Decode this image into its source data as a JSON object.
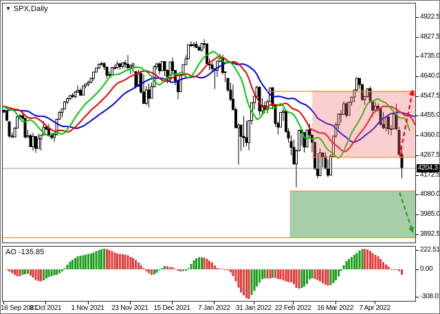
{
  "window": {
    "symbol_label": "SPX,Daily",
    "dropdown_icon": "▼"
  },
  "colors": {
    "up_body": "#ffffff",
    "down_body": "#000000",
    "wick": "#000000",
    "jaw": "#0000e0",
    "teeth": "#ea0000",
    "lips": "#00c800",
    "level_orange": "#f08a3c",
    "resistance_fill": "rgba(242,110,110,0.33)",
    "support_fill": "rgba(96,165,96,0.55)",
    "ao_up": "#1f9e1f",
    "ao_down": "#e13b3b",
    "price_line": "#9c9c9c",
    "badge_bg": "#000000",
    "badge_text": "#ffffff",
    "arrow_up": "#ff0000",
    "arrow_down": "#22a022"
  },
  "chart_data": {
    "type": "candlestick+oscillator",
    "title": "SPX,Daily",
    "timeframe": "Daily",
    "first_visible_index": 32,
    "price_axis": {
      "range": [
        3853,
        4987
      ],
      "ticks": [
        4922.5,
        4827.5,
        4735.0,
        4640.0,
        4547.5,
        4455.0,
        4360.0,
        4267.5,
        4172.5,
        4080.0,
        3985.0,
        3892.5
      ]
    },
    "current_price": 4204.3,
    "current_price_label": "4204.3",
    "time_axis": {
      "ticks": [
        {
          "label": "16 Sep 2021",
          "idx": 0
        },
        {
          "label": "8 Oct 2021",
          "idx": 16
        },
        {
          "label": "1 Nov 2021",
          "idx": 32
        },
        {
          "label": "23 Nov 2021",
          "idx": 48
        },
        {
          "label": "15 Dec 2021",
          "idx": 64
        },
        {
          "label": "7 Jan 2022",
          "idx": 80
        },
        {
          "label": "31 Jan 2022",
          "idx": 95
        },
        {
          "label": "22 Feb 2022",
          "idx": 110
        },
        {
          "label": "16 Mar 2022",
          "idx": 126
        },
        {
          "label": "7 Apr 2022",
          "idx": 141
        }
      ]
    },
    "alligator": {
      "lines": [
        {
          "name": "alligator-jaw-line",
          "period": 13,
          "shift": 8,
          "color_key": "jaw"
        },
        {
          "name": "alligator-teeth-line",
          "period": 8,
          "shift": 5,
          "color_key": "teeth"
        },
        {
          "name": "alligator-lips-line",
          "period": 5,
          "shift": 3,
          "color_key": "lips"
        }
      ]
    },
    "zones": [
      {
        "name": "resistance-zone",
        "price_top": 4570,
        "price_bottom": 4257,
        "start_idx": 117,
        "fill_key": "resistance_fill"
      },
      {
        "name": "support-zone",
        "price_top": 4097,
        "price_bottom": 3876,
        "start_idx": 108.5,
        "fill_key": "support_fill"
      }
    ],
    "levels": [
      {
        "name": "resistance-level-line",
        "price": 4570,
        "start_idx": 99.5
      },
      {
        "name": "support-level-line",
        "price": 3876,
        "start_idx": -0.6
      }
    ],
    "arrows": [
      {
        "name": "bullish-projection-arrow",
        "color_key": "arrow_up",
        "from": {
          "idx": 150.2,
          "price": 4262
        },
        "to": {
          "idx": 155.3,
          "price": 4580
        }
      },
      {
        "name": "bearish-projection-arrow",
        "color_key": "arrow_down",
        "from": {
          "idx": 150.2,
          "price": 4090
        },
        "to": {
          "idx": 155.3,
          "price": 3897
        }
      }
    ],
    "ao": {
      "label": "AO -135.85",
      "fast_period": 5,
      "slow_period": 34,
      "axis_ticks": [
        {
          "label": "222.51",
          "pin": "top"
        },
        {
          "label": "0.00",
          "pin": "zero"
        },
        {
          "label": "-308.01",
          "pin": "bottom"
        }
      ]
    },
    "candles": [
      [
        4395,
        4402,
        4368,
        4387
      ],
      [
        4387,
        4425,
        4384,
        4423
      ],
      [
        4423,
        4429,
        4396,
        4403
      ],
      [
        4403,
        4435,
        4401,
        4429
      ],
      [
        4429,
        4441,
        4425,
        4437
      ],
      [
        4437,
        4442,
        4421,
        4432
      ],
      [
        4432,
        4445,
        4425,
        4436
      ],
      [
        4436,
        4453,
        4430,
        4448
      ],
      [
        4448,
        4465,
        4444,
        4461
      ],
      [
        4461,
        4473,
        4454,
        4468
      ],
      [
        4468,
        4486,
        4463,
        4480
      ],
      [
        4480,
        4482,
        4438,
        4448
      ],
      [
        4448,
        4454,
        4388,
        4400
      ],
      [
        4400,
        4418,
        4392,
        4405
      ],
      [
        4405,
        4448,
        4404,
        4442
      ],
      [
        4442,
        4485,
        4441,
        4480
      ],
      [
        4480,
        4492,
        4468,
        4486
      ],
      [
        4486,
        4501,
        4477,
        4496
      ],
      [
        4496,
        4498,
        4458,
        4470
      ],
      [
        4470,
        4514,
        4468,
        4509
      ],
      [
        4509,
        4537,
        4507,
        4529
      ],
      [
        4529,
        4540,
        4513,
        4523
      ],
      [
        4523,
        4535,
        4510,
        4524
      ],
      [
        4524,
        4546,
        4518,
        4537
      ],
      [
        4537,
        4550,
        4526,
        4535
      ],
      [
        4535,
        4540,
        4506,
        4520
      ],
      [
        4520,
        4532,
        4501,
        4514
      ],
      [
        4514,
        4522,
        4484,
        4493
      ],
      [
        4493,
        4499,
        4448,
        4459
      ],
      [
        4459,
        4485,
        4452,
        4469
      ],
      [
        4469,
        4476,
        4436,
        4443
      ],
      [
        4443,
        4490,
        4439,
        4481
      ],
      [
        4480,
        4485,
        4468,
        4474
      ],
      [
        4474,
        4476,
        4428,
        4433
      ],
      [
        4425,
        4430,
        4350,
        4358
      ],
      [
        4358,
        4375,
        4348,
        4354
      ],
      [
        4354,
        4400,
        4352,
        4396
      ],
      [
        4396,
        4455,
        4394,
        4449
      ],
      [
        4449,
        4463,
        4438,
        4455
      ],
      [
        4455,
        4467,
        4436,
        4443
      ],
      [
        4443,
        4445,
        4346,
        4353
      ],
      [
        4353,
        4387,
        4350,
        4359
      ],
      [
        4359,
        4369,
        4306,
        4308
      ],
      [
        4308,
        4375,
        4288,
        4357
      ],
      [
        4357,
        4358,
        4279,
        4300
      ],
      [
        4300,
        4369,
        4298,
        4345
      ],
      [
        4345,
        4365,
        4290,
        4363
      ],
      [
        4363,
        4429,
        4361,
        4400
      ],
      [
        4400,
        4412,
        4386,
        4391
      ],
      [
        4391,
        4415,
        4355,
        4361
      ],
      [
        4361,
        4374,
        4342,
        4351
      ],
      [
        4351,
        4372,
        4330,
        4364
      ],
      [
        4364,
        4440,
        4362,
        4438
      ],
      [
        4438,
        4475,
        4437,
        4471
      ],
      [
        4471,
        4488,
        4448,
        4486
      ],
      [
        4486,
        4524,
        4486,
        4520
      ],
      [
        4520,
        4541,
        4509,
        4536
      ],
      [
        4536,
        4551,
        4527,
        4550
      ],
      [
        4550,
        4560,
        4538,
        4545
      ],
      [
        4545,
        4572,
        4537,
        4566
      ],
      [
        4566,
        4598,
        4563,
        4575
      ],
      [
        4575,
        4585,
        4548,
        4552
      ],
      [
        4552,
        4597,
        4552,
        4596
      ],
      [
        4596,
        4608,
        4585,
        4605
      ],
      [
        4605,
        4620,
        4595,
        4614
      ],
      [
        4614,
        4635,
        4609,
        4631
      ],
      [
        4631,
        4664,
        4621,
        4661
      ],
      [
        4661,
        4683,
        4659,
        4680
      ],
      [
        4680,
        4702,
        4676,
        4698
      ],
      [
        4698,
        4710,
        4692,
        4702
      ],
      [
        4702,
        4708,
        4671,
        4685
      ],
      [
        4685,
        4688,
        4631,
        4647
      ],
      [
        4647,
        4665,
        4640,
        4649
      ],
      [
        4649,
        4688,
        4648,
        4683
      ],
      [
        4683,
        4697,
        4673,
        4683
      ],
      [
        4683,
        4714,
        4678,
        4701
      ],
      [
        4701,
        4706,
        4672,
        4688
      ],
      [
        4688,
        4708,
        4678,
        4705
      ],
      [
        4705,
        4718,
        4680,
        4698
      ],
      [
        4698,
        4743,
        4672,
        4683
      ],
      [
        4683,
        4699,
        4652,
        4690
      ],
      [
        4690,
        4705,
        4659,
        4701
      ],
      [
        4664,
        4664,
        4585,
        4595
      ],
      [
        4595,
        4672,
        4594,
        4655
      ],
      [
        4655,
        4663,
        4560,
        4567
      ],
      [
        4567,
        4652,
        4510,
        4513
      ],
      [
        4513,
        4595,
        4504,
        4577
      ],
      [
        4577,
        4608,
        4495,
        4538
      ],
      [
        4538,
        4612,
        4538,
        4592
      ],
      [
        4592,
        4694,
        4592,
        4687
      ],
      [
        4687,
        4705,
        4674,
        4701
      ],
      [
        4701,
        4708,
        4650,
        4667
      ],
      [
        4667,
        4713,
        4667,
        4712
      ],
      [
        4712,
        4713,
        4642,
        4669
      ],
      [
        4669,
        4674,
        4607,
        4634
      ],
      [
        4634,
        4712,
        4611,
        4710
      ],
      [
        4710,
        4731,
        4651,
        4669
      ],
      [
        4669,
        4670,
        4600,
        4621
      ],
      [
        4621,
        4627,
        4532,
        4568
      ],
      [
        4568,
        4651,
        4568,
        4649
      ],
      [
        4649,
        4698,
        4645,
        4697
      ],
      [
        4697,
        4741,
        4695,
        4725
      ],
      [
        4725,
        4792,
        4722,
        4791
      ],
      [
        4791,
        4807,
        4780,
        4786
      ],
      [
        4786,
        4805,
        4778,
        4793
      ],
      [
        4793,
        4808,
        4775,
        4779
      ],
      [
        4779,
        4787,
        4762,
        4766
      ],
      [
        4766,
        4800,
        4758,
        4797
      ],
      [
        4797,
        4818,
        4774,
        4794
      ],
      [
        4794,
        4798,
        4700,
        4701
      ],
      [
        4701,
        4726,
        4671,
        4696
      ],
      [
        4696,
        4708,
        4663,
        4677
      ],
      [
        4677,
        4681,
        4582,
        4670
      ],
      [
        4670,
        4714,
        4638,
        4713
      ],
      [
        4713,
        4749,
        4706,
        4726
      ],
      [
        4726,
        4744,
        4650,
        4659
      ],
      [
        4659,
        4665,
        4614,
        4663
      ],
      [
        4632,
        4633,
        4568,
        4577
      ],
      [
        4577,
        4612,
        4524,
        4533
      ],
      [
        4533,
        4602,
        4478,
        4483
      ],
      [
        4483,
        4495,
        4395,
        4398
      ],
      [
        4398,
        4418,
        4223,
        4410
      ],
      [
        4410,
        4412,
        4287,
        4356
      ],
      [
        4356,
        4454,
        4305,
        4350
      ],
      [
        4350,
        4429,
        4310,
        4327
      ],
      [
        4327,
        4433,
        4292,
        4432
      ],
      [
        4432,
        4517,
        4414,
        4516
      ],
      [
        4516,
        4550,
        4483,
        4547
      ],
      [
        4547,
        4596,
        4544,
        4589
      ],
      [
        4589,
        4595,
        4456,
        4477
      ],
      [
        4477,
        4539,
        4452,
        4501
      ],
      [
        4501,
        4522,
        4466,
        4484
      ],
      [
        4484,
        4531,
        4465,
        4521
      ],
      [
        4521,
        4590,
        4521,
        4587
      ],
      [
        4587,
        4591,
        4485,
        4504
      ],
      [
        4504,
        4506,
        4402,
        4419
      ],
      [
        4419,
        4427,
        4365,
        4401
      ],
      [
        4401,
        4472,
        4400,
        4471
      ],
      [
        4471,
        4489,
        4429,
        4475
      ],
      [
        4475,
        4476,
        4374,
        4380
      ],
      [
        4380,
        4394,
        4327,
        4349
      ],
      [
        4332,
        4362,
        4267,
        4305
      ],
      [
        4305,
        4341,
        4221,
        4226
      ],
      [
        4226,
        4295,
        4115,
        4288
      ],
      [
        4288,
        4388,
        4286,
        4385
      ],
      [
        4385,
        4386,
        4312,
        4374
      ],
      [
        4374,
        4378,
        4280,
        4306
      ],
      [
        4306,
        4389,
        4304,
        4387
      ],
      [
        4387,
        4417,
        4345,
        4363
      ],
      [
        4363,
        4365,
        4282,
        4329
      ],
      [
        4329,
        4330,
        4200,
        4201
      ],
      [
        4201,
        4276,
        4158,
        4171
      ],
      [
        4171,
        4299,
        4168,
        4278
      ],
      [
        4278,
        4279,
        4210,
        4260
      ],
      [
        4260,
        4281,
        4200,
        4204
      ],
      [
        4204,
        4248,
        4162,
        4173
      ],
      [
        4173,
        4271,
        4172,
        4262
      ],
      [
        4262,
        4359,
        4261,
        4358
      ],
      [
        4358,
        4421,
        4350,
        4412
      ],
      [
        4412,
        4465,
        4391,
        4463
      ],
      [
        4463,
        4482,
        4424,
        4461
      ],
      [
        4461,
        4522,
        4461,
        4512
      ],
      [
        4512,
        4520,
        4446,
        4456
      ],
      [
        4456,
        4521,
        4455,
        4520
      ],
      [
        4520,
        4546,
        4501,
        4543
      ],
      [
        4543,
        4578,
        4517,
        4576
      ],
      [
        4576,
        4637,
        4573,
        4632
      ],
      [
        4632,
        4633,
        4581,
        4602
      ],
      [
        4602,
        4603,
        4525,
        4530
      ],
      [
        4530,
        4549,
        4507,
        4546
      ],
      [
        4546,
        4584,
        4541,
        4583
      ],
      [
        4583,
        4593,
        4514,
        4525
      ],
      [
        4525,
        4527,
        4450,
        4481
      ],
      [
        4481,
        4521,
        4474,
        4500
      ],
      [
        4500,
        4513,
        4475,
        4488
      ],
      [
        4488,
        4489,
        4408,
        4413
      ],
      [
        4413,
        4471,
        4390,
        4397
      ],
      [
        4397,
        4448,
        4381,
        4447
      ],
      [
        4447,
        4460,
        4365,
        4393
      ],
      [
        4393,
        4410,
        4362,
        4392
      ],
      [
        4392,
        4471,
        4390,
        4462
      ],
      [
        4462,
        4512,
        4385,
        4393
      ],
      [
        4385,
        4402,
        4267,
        4272
      ],
      [
        4272,
        4308,
        4158,
        4204.3
      ]
    ]
  }
}
